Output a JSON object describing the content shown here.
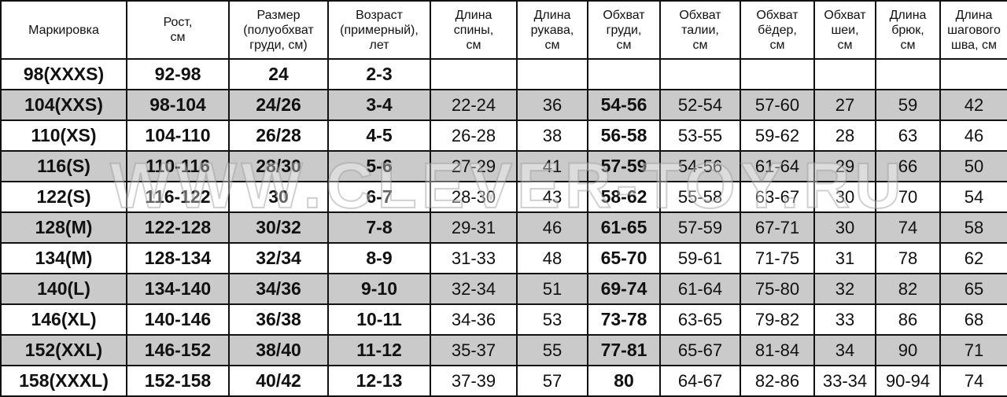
{
  "headers": [
    "Маркировка",
    "Рост, см",
    "Размер (полуобхват груди, см)",
    "Возраст (примерный), лет",
    "Длина спины, см",
    "Длина рукава, см",
    "Обхват груди, см",
    "Обхват талии, см",
    "Обхват бёдер, см",
    "Обхват шеи, см",
    "Длина брюк, см",
    "Длина шагового шва, см"
  ],
  "header_lines": [
    [
      "Маркировка"
    ],
    [
      "Рост,",
      "см"
    ],
    [
      "Размер",
      "(полуобхват",
      "груди, см)"
    ],
    [
      "Возраст",
      "(примерный),",
      "лет"
    ],
    [
      "Длина",
      "спины,",
      "см"
    ],
    [
      "Длина",
      "рукава,",
      "см"
    ],
    [
      "Обхват",
      "груди,",
      "см"
    ],
    [
      "Обхват",
      "талии,",
      "см"
    ],
    [
      "Обхват",
      "бёдер,",
      "см"
    ],
    [
      "Обхват",
      "шеи,",
      "см"
    ],
    [
      "Длина",
      "брюк,",
      "см"
    ],
    [
      "Длина",
      "шагового",
      "шва, см"
    ]
  ],
  "bold_columns": [
    0,
    1,
    2,
    3,
    6
  ],
  "row_colors": {
    "odd": "#ffffff",
    "even": "#cacaca"
  },
  "rows": [
    [
      "98(XXXS)",
      "92-98",
      "24",
      "2-3",
      "",
      "",
      "",
      "",
      "",
      "",
      "",
      ""
    ],
    [
      "104(XXS)",
      "98-104",
      "24/26",
      "3-4",
      "22-24",
      "36",
      "54-56",
      "52-54",
      "57-60",
      "27",
      "59",
      "42"
    ],
    [
      "110(XS)",
      "104-110",
      "26/28",
      "4-5",
      "26-28",
      "38",
      "56-58",
      "53-55",
      "59-62",
      "28",
      "63",
      "46"
    ],
    [
      "116(S)",
      "110-116",
      "28/30",
      "5-6",
      "27-29",
      "41",
      "57-59",
      "54-56",
      "61-64",
      "29",
      "66",
      "50"
    ],
    [
      "122(S)",
      "116-122",
      "30",
      "6-7",
      "28-30",
      "43",
      "58-62",
      "55-58",
      "63-67",
      "30",
      "70",
      "54"
    ],
    [
      "128(M)",
      "122-128",
      "30/32",
      "7-8",
      "29-31",
      "46",
      "61-65",
      "57-59",
      "67-71",
      "30",
      "74",
      "58"
    ],
    [
      "134(M)",
      "128-134",
      "32/34",
      "8-9",
      "31-33",
      "48",
      "65-70",
      "59-61",
      "71-75",
      "31",
      "78",
      "62"
    ],
    [
      "140(L)",
      "134-140",
      "34/36",
      "9-10",
      "32-34",
      "51",
      "69-74",
      "61-64",
      "75-80",
      "32",
      "82",
      "65"
    ],
    [
      "146(XL)",
      "140-146",
      "36/38",
      "10-11",
      "34-36",
      "53",
      "73-78",
      "63-65",
      "79-82",
      "33",
      "86",
      "68"
    ],
    [
      "152(XXL)",
      "146-152",
      "38/40",
      "11-12",
      "35-37",
      "55",
      "77-81",
      "65-67",
      "81-84",
      "34",
      "90",
      "71"
    ],
    [
      "158(XXXL)",
      "152-158",
      "40/42",
      "12-13",
      "37-39",
      "57",
      "80",
      "64-67",
      "82-86",
      "33-34",
      "90-94",
      "74"
    ]
  ],
  "watermark": "WWW.CLEVER-TOY.RU"
}
